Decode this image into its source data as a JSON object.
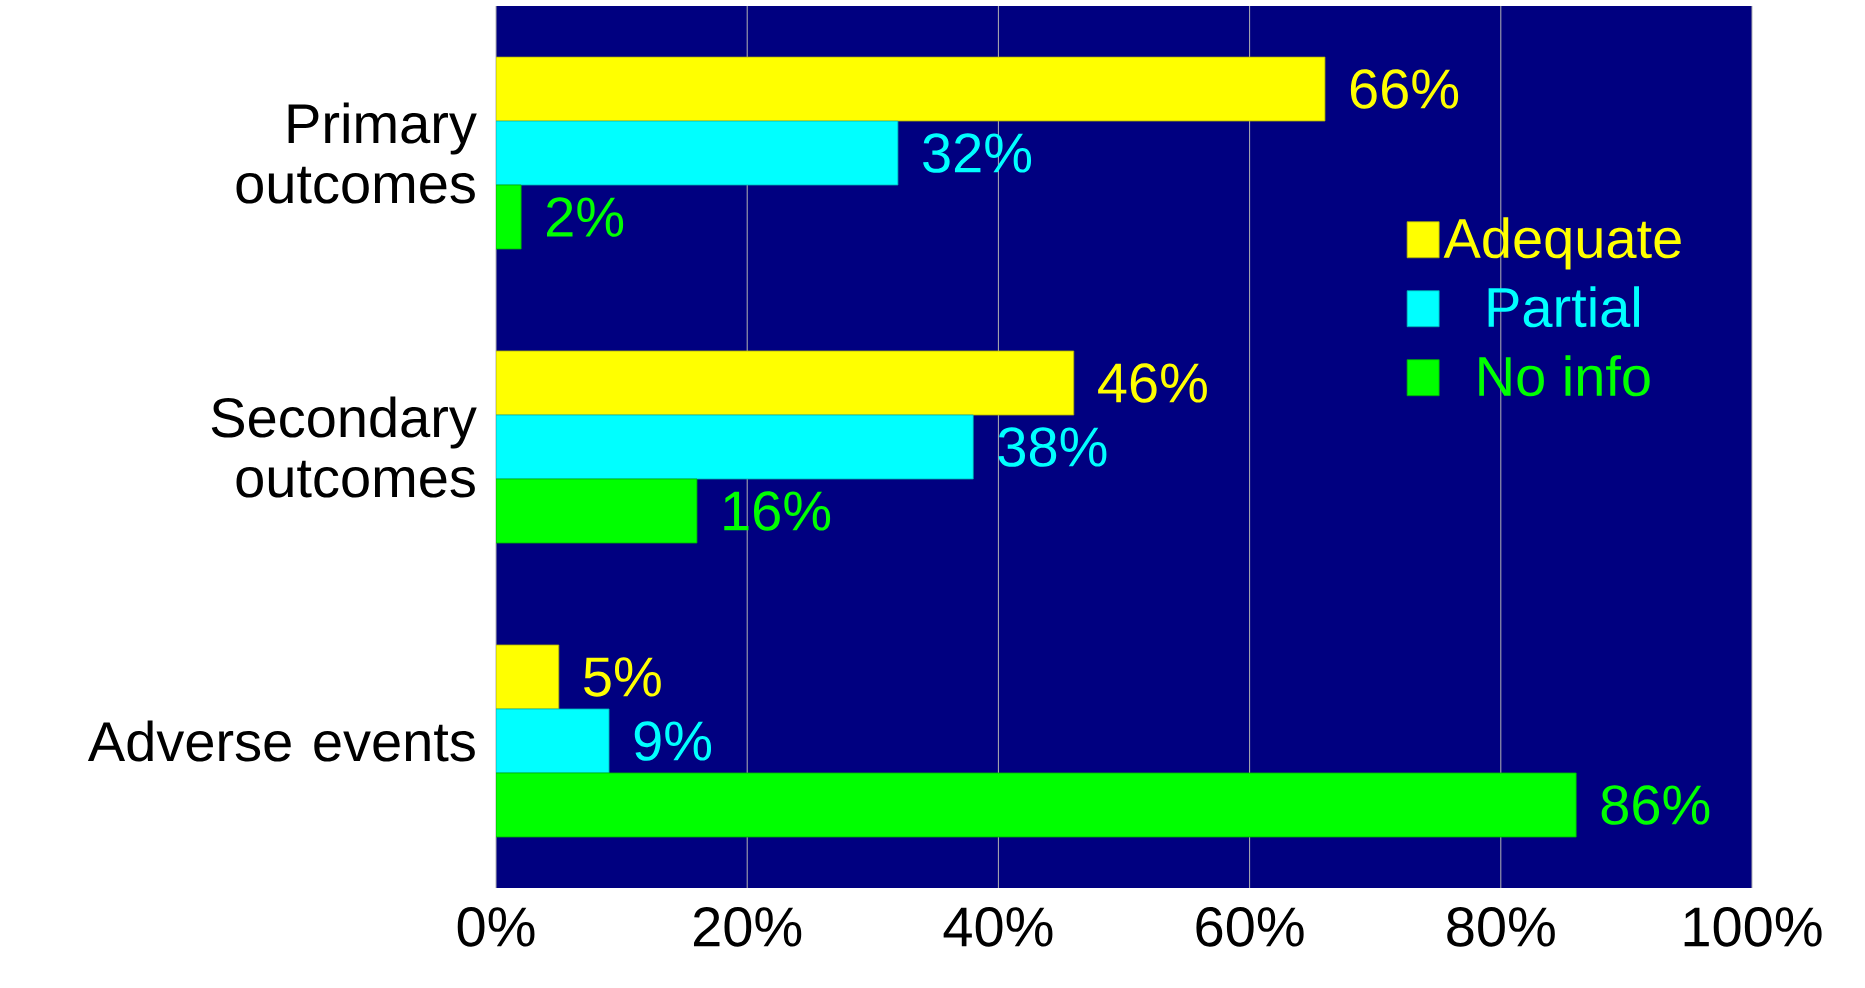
{
  "chart_data": {
    "type": "bar",
    "orientation": "horizontal",
    "categories": [
      "Primary outcomes",
      "Secondary outcomes",
      "Adverse events"
    ],
    "series": [
      {
        "name": "Adequate",
        "color": "#ffff00",
        "values": [
          66,
          46,
          5
        ],
        "value_labels": [
          "66%",
          "46%",
          "5%"
        ]
      },
      {
        "name": "Partial",
        "color": "#00ffff",
        "values": [
          32,
          38,
          9
        ],
        "value_labels": [
          "32%",
          "38%",
          "9%"
        ]
      },
      {
        "name": "No info",
        "color": "#00ff00",
        "values": [
          2,
          16,
          86
        ],
        "value_labels": [
          "2%",
          "16%",
          "86%"
        ]
      }
    ],
    "xlim": [
      0,
      100
    ],
    "xticks": [
      {
        "value": 0,
        "label": "0%"
      },
      {
        "value": 20,
        "label": "20%"
      },
      {
        "value": 40,
        "label": "40%"
      },
      {
        "value": 60,
        "label": "60%"
      },
      {
        "value": 80,
        "label": "80%"
      },
      {
        "value": 100,
        "label": "100%"
      }
    ],
    "grid": "x",
    "legend": "right"
  }
}
